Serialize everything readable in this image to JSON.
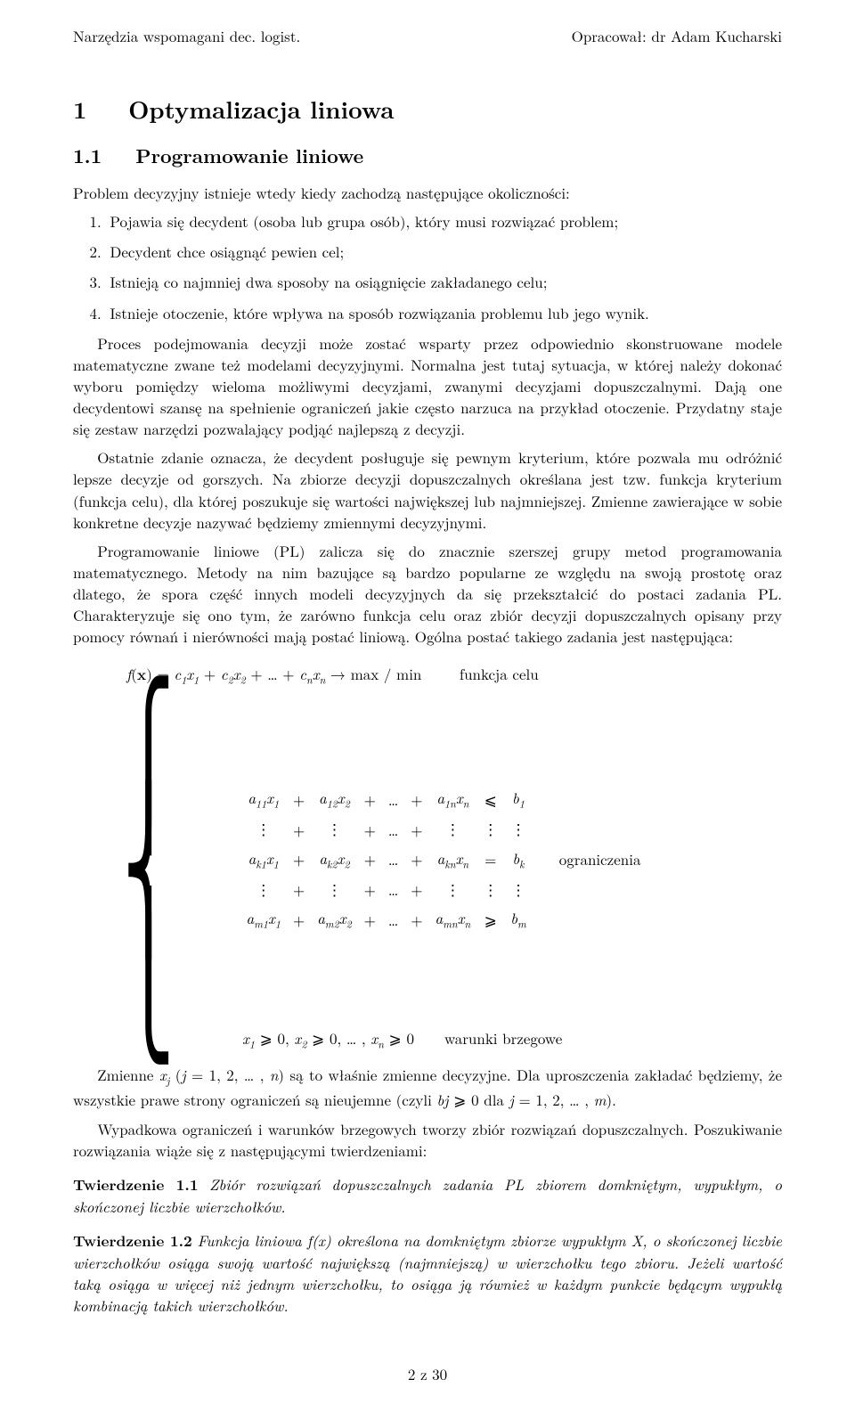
{
  "header": {
    "left": "Narzędzia wspomagani dec. logist.",
    "right": "Opracował: dr Adam Kucharski"
  },
  "section": {
    "num": "1",
    "title": "Optymalizacja liniowa"
  },
  "subsection": {
    "num": "1.1",
    "title": "Programowanie liniowe"
  },
  "intro": "Problem decyzyjny istnieje wtedy kiedy zachodzą następujące okoliczności:",
  "list": {
    "i1": "Pojawia się decydent (osoba lub grupa osób), który musi rozwiązać problem;",
    "i2": "Decydent chce osiągnąć pewien cel;",
    "i3": "Istnieją co najmniej dwa sposoby na osiągnięcie zakładanego celu;",
    "i4": "Istnieje otoczenie, które wpływa na sposób rozwiązania problemu lub jego wynik."
  },
  "para1": "Proces podejmowania decyzji może zostać wsparty przez odpowiednio skonstruowane modele matematyczne zwane też modelami decyzyjnymi. Normalna jest tutaj sytuacja, w której należy dokonać wyboru pomiędzy wieloma możliwymi decyzjami, zwanymi decyzjami dopuszczalnymi. Dają one decydentowi szansę na spełnienie ograniczeń jakie często narzuca na przykład otoczenie. Przydatny staje się zestaw narzędzi pozwalający podjąć najlepszą z decyzji.",
  "para2": "Ostatnie zdanie oznacza, że decydent posługuje się pewnym kryterium, które pozwala mu odróżnić lepsze decyzje od gorszych. Na zbiorze decyzji dopuszczalnych określana jest tzw. funkcja kryterium (funkcja celu), dla której poszukuje się wartości największej lub najmniejszej. Zmienne zawierające w sobie konkretne decyzje nazywać będziemy zmiennymi decyzyjnymi.",
  "para3": "Programowanie liniowe (PL) zalicza się do znacznie szerszej grupy metod programowania matematycznego. Metody na nim bazujące są bardzo popularne ze względu na swoją prostotę oraz dlatego, że spora część innych modeli decyzyjnych da się przekształcić do postaci zadania PL. Charakteryzuje się ono tym, że zarówno funkcja celu oraz zbiór decyzji dopuszczalnych opisany przy pomocy równań i nierówności mają postać liniową. Ogólna postać takiego zadania jest następująca:",
  "math": {
    "objective_label": "funkcja celu",
    "constraints_label": "ograniczenia",
    "bc_label": "warunki brzegowe",
    "objective": "f(x) = c₁x₁ + c₂x₂ + … + cₙxₙ → max / min",
    "row1": {
      "a1": "a₁₁x₁",
      "a2": "a₁₂x₂",
      "an": "a₁ₙxₙ",
      "rel": "⩽",
      "b": "b₁"
    },
    "rowk": {
      "a1": "aₖ₁x₁",
      "a2": "aₖ₂x₂",
      "an": "aₖₙxₙ",
      "rel": "=",
      "b": "bₖ"
    },
    "rowm": {
      "a1": "aₘ₁x₁",
      "a2": "aₘ₂x₂",
      "an": "aₘₙxₙ",
      "rel": "⩾",
      "b": "bₘ"
    },
    "bc": "x₁ ⩾ 0, x₂ ⩾ 0, … , xₙ ⩾ 0"
  },
  "para4a": "Zmienne ",
  "para4b": " są to właśnie zmienne decyzyjne. Dla uproszczenia zakładać będziemy, że wszystkie prawe strony ograniczeń są nieujemne (czyli ",
  "para4c": ").",
  "para4_xj": "xⱼ (j = 1, 2, … , n)",
  "para4_bj": "bj ⩾ 0 dla j = 1, 2, … , m",
  "para5": "Wypadkowa ograniczeń i warunków brzegowych tworzy zbiór rozwiązań dopuszczalnych. Poszukiwanie rozwiązania wiąże się z następującymi twierdzeniami:",
  "tw1": {
    "label": "Twierdzenie 1.1",
    "text": "Zbiór rozwiązań dopuszczalnych zadania PL zbiorem domkniętym, wypukłym, o skończonej liczbie wierzchołków."
  },
  "tw2": {
    "label": "Twierdzenie 1.2",
    "text_a": "Funkcja liniowa f(x) określona na domkniętym zbiorze wypukłym X, o skończonej liczbie wierzchołków osiąga swoją wartość największą (najmniejszą) w wierzchołku tego zbioru. Jeżeli wartość taką osiąga w więcej niż jednym wierzchołku, to osiąga ją również w każdym punkcie będącym wypukłą kombinacją takich wierzchołków."
  },
  "footer": "2 z 30"
}
